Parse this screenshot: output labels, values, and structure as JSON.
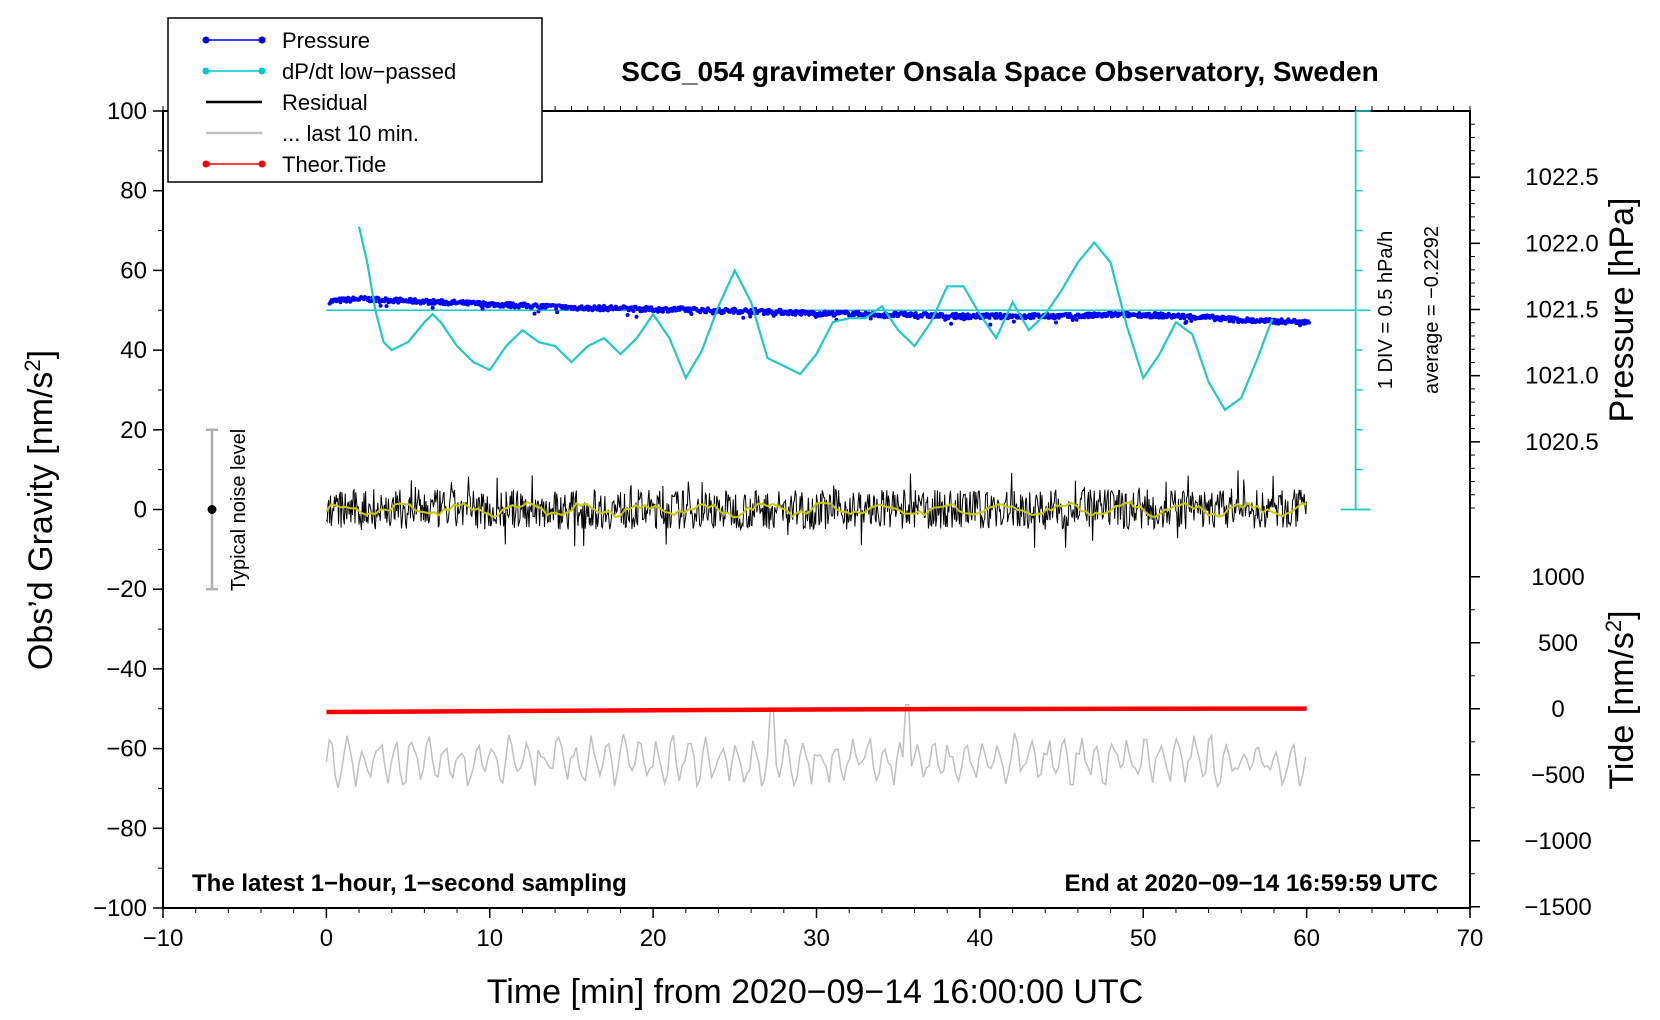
{
  "chart_data": {
    "type": "line",
    "title": "SCG_054 gravimeter Onsala Space Observatory, Sweden",
    "xlabel": "Time [min] from 2020−09−14 16:00:00 UTC",
    "ylabel_left": "Obs’d Gravity [nm/s",
    "ylabel_left_sup": "2",
    "ylabel_left_end": "]",
    "ylabel_right_pressure": "Pressure [hPa]",
    "ylabel_right_tide": "Tide [nm/s",
    "ylabel_right_tide_sup": "2",
    "ylabel_right_tide_end": "]",
    "xlim": [
      -10,
      70
    ],
    "ylim_left": [
      -100,
      100
    ],
    "pressure_range": [
      1020.0,
      1023.0
    ],
    "tide_range": [
      -1500,
      1500
    ],
    "x_ticks": [
      "−10",
      "0",
      "10",
      "20",
      "30",
      "40",
      "50",
      "60",
      "70"
    ],
    "y_ticks_left": [
      "100",
      "80",
      "60",
      "40",
      "20",
      "0",
      "−20",
      "−40",
      "−60",
      "−80",
      "−100"
    ],
    "pressure_ticks": [
      "1022.5",
      "1022.0",
      "1021.5",
      "1021.0",
      "1020.5"
    ],
    "tide_ticks": [
      "1000",
      "500",
      "0",
      "−500",
      "−1000",
      "−1500"
    ],
    "legend": [
      {
        "label": "Pressure",
        "color": "#0000ff",
        "style": "line-dot"
      },
      {
        "label": "dP/dt low−passed",
        "color": "#00c8c8",
        "style": "line-dot"
      },
      {
        "label": "Residual",
        "color": "#000000",
        "style": "line"
      },
      {
        "label": "... last 10 min.",
        "color": "#c0c0c0",
        "style": "line"
      },
      {
        "label": "Theor.Tide",
        "color": "#ff0000",
        "style": "line-dot"
      }
    ],
    "annotations": {
      "bottom_left": "The latest 1−hour, 1−second sampling",
      "bottom_right": "End at 2020−09−14 16:59:59 UTC",
      "noise_label": "Typical noise level",
      "div_label": "1 DIV = 0.5 hPa/h",
      "average_label": "average = −0.2292"
    },
    "noise_bar": {
      "x": -7,
      "center": 0,
      "half_range": 20
    },
    "series": [
      {
        "name": "Pressure",
        "units": "hPa",
        "x": [
          0,
          2,
          4,
          6,
          8,
          10,
          12,
          14,
          16,
          18,
          20,
          22,
          24,
          26,
          28,
          30,
          32,
          34,
          36,
          38,
          40,
          42,
          44,
          46,
          48,
          50,
          52,
          54,
          56,
          58,
          60
        ],
        "values": [
          1021.56,
          1021.58,
          1021.57,
          1021.56,
          1021.55,
          1021.54,
          1021.53,
          1021.52,
          1021.51,
          1021.51,
          1021.5,
          1021.5,
          1021.49,
          1021.49,
          1021.48,
          1021.47,
          1021.47,
          1021.46,
          1021.46,
          1021.45,
          1021.45,
          1021.45,
          1021.45,
          1021.45,
          1021.46,
          1021.46,
          1021.45,
          1021.44,
          1021.42,
          1021.41,
          1021.41
        ]
      },
      {
        "name": "dP/dt low-passed",
        "units": "nm/s2 display scale",
        "x": [
          2.0,
          2.5,
          3.0,
          3.5,
          4.0,
          5.0,
          6.0,
          6.5,
          7.0,
          8.0,
          9.0,
          10.0,
          11.0,
          12.0,
          13.0,
          14.0,
          15.0,
          16.0,
          17.0,
          18.0,
          19.0,
          20.0,
          21.0,
          22.0,
          23.0,
          24.0,
          25.0,
          26.0,
          27.0,
          28.0,
          29.0,
          30.0,
          31.0,
          32.0,
          33.0,
          34.0,
          35.0,
          36.0,
          37.0,
          38.0,
          39.0,
          40.0,
          41.0,
          42.0,
          43.0,
          44.0,
          45.0,
          46.0,
          47.0,
          48.0,
          49.0,
          50.0,
          51.0,
          52.0,
          53.0,
          54.0,
          55.0,
          56.0,
          57.0,
          58.0
        ],
        "values": [
          71,
          62,
          50,
          42,
          40,
          42,
          47,
          49,
          47,
          41,
          37,
          35,
          41,
          45,
          42,
          41,
          37,
          41,
          43,
          39,
          43,
          49,
          43,
          33,
          40,
          51,
          60,
          52,
          38,
          36,
          34,
          39,
          47,
          48,
          48,
          51,
          45,
          41,
          47,
          56,
          56,
          49,
          43,
          52,
          45,
          49,
          55,
          62,
          67,
          62,
          46,
          33,
          39,
          47,
          44,
          32,
          25,
          28,
          38,
          49
        ]
      },
      {
        "name": "Residual",
        "units": "nm/s2",
        "x": [
          0,
          5,
          10,
          15,
          20,
          25,
          30,
          35,
          40,
          45,
          50,
          55,
          60
        ],
        "values": [
          0,
          1,
          0,
          0,
          1,
          0,
          0,
          0,
          0,
          0,
          0,
          0,
          0
        ]
      },
      {
        "name": "... last 10 min.",
        "units": "nm/s2",
        "x": [
          0,
          5,
          10,
          15,
          20,
          25,
          27.3,
          30,
          35,
          35.5,
          40,
          45,
          50,
          55,
          60
        ],
        "values": [
          -62,
          -64,
          -63,
          -64,
          -63,
          -62,
          -50,
          -63,
          -64,
          -49,
          -64,
          -63,
          -62,
          -63,
          -63
        ]
      },
      {
        "name": "Theor.Tide",
        "units": "nm/s2",
        "x": [
          0,
          10,
          20,
          30,
          40,
          50,
          60
        ],
        "values": [
          -25,
          -18,
          -12,
          -6,
          -2,
          0,
          1
        ]
      }
    ]
  }
}
